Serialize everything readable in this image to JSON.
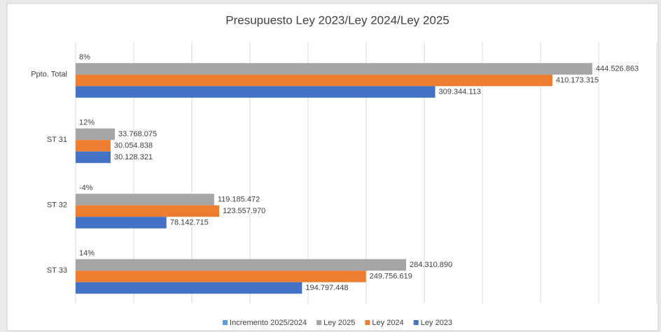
{
  "chart_data": {
    "type": "hbar",
    "title": "Presupuesto Ley 2023/Ley 2024/Ley 2025",
    "categories": [
      "Ppto. Total",
      "ST 31",
      "ST 32",
      "ST 33"
    ],
    "series": [
      {
        "name": "Incremento 2025/2024",
        "color": "#5b9bd5",
        "values": [
          8,
          12,
          -4,
          14
        ],
        "value_labels": [
          "8%",
          "12%",
          "-4%",
          "14%"
        ]
      },
      {
        "name": "Ley 2025",
        "color": "#a5a5a5",
        "values": [
          444526863,
          33768075,
          119185472,
          284310890
        ],
        "value_labels": [
          "444.526.863",
          "33.768.075",
          "119.185.472",
          "284.310.890"
        ]
      },
      {
        "name": "Ley 2024",
        "color": "#ed7d31",
        "values": [
          410173315,
          30054838,
          123557970,
          249756619
        ],
        "value_labels": [
          "410.173.315",
          "30.054.838",
          "123.557.970",
          "249.756.619"
        ]
      },
      {
        "name": "Ley 2023",
        "color": "#4472c4",
        "values": [
          309344113,
          30128321,
          78142715,
          194797448
        ],
        "value_labels": [
          "309.344.113",
          "30.128.321",
          "78.142.715",
          "194.797.448"
        ]
      }
    ],
    "xlim": [
      0,
      500000000
    ],
    "xticks": [
      0,
      50000000,
      100000000,
      150000000,
      200000000,
      250000000,
      300000000,
      350000000,
      400000000,
      450000000,
      500000000
    ],
    "grid": true,
    "legend": "bottom"
  }
}
